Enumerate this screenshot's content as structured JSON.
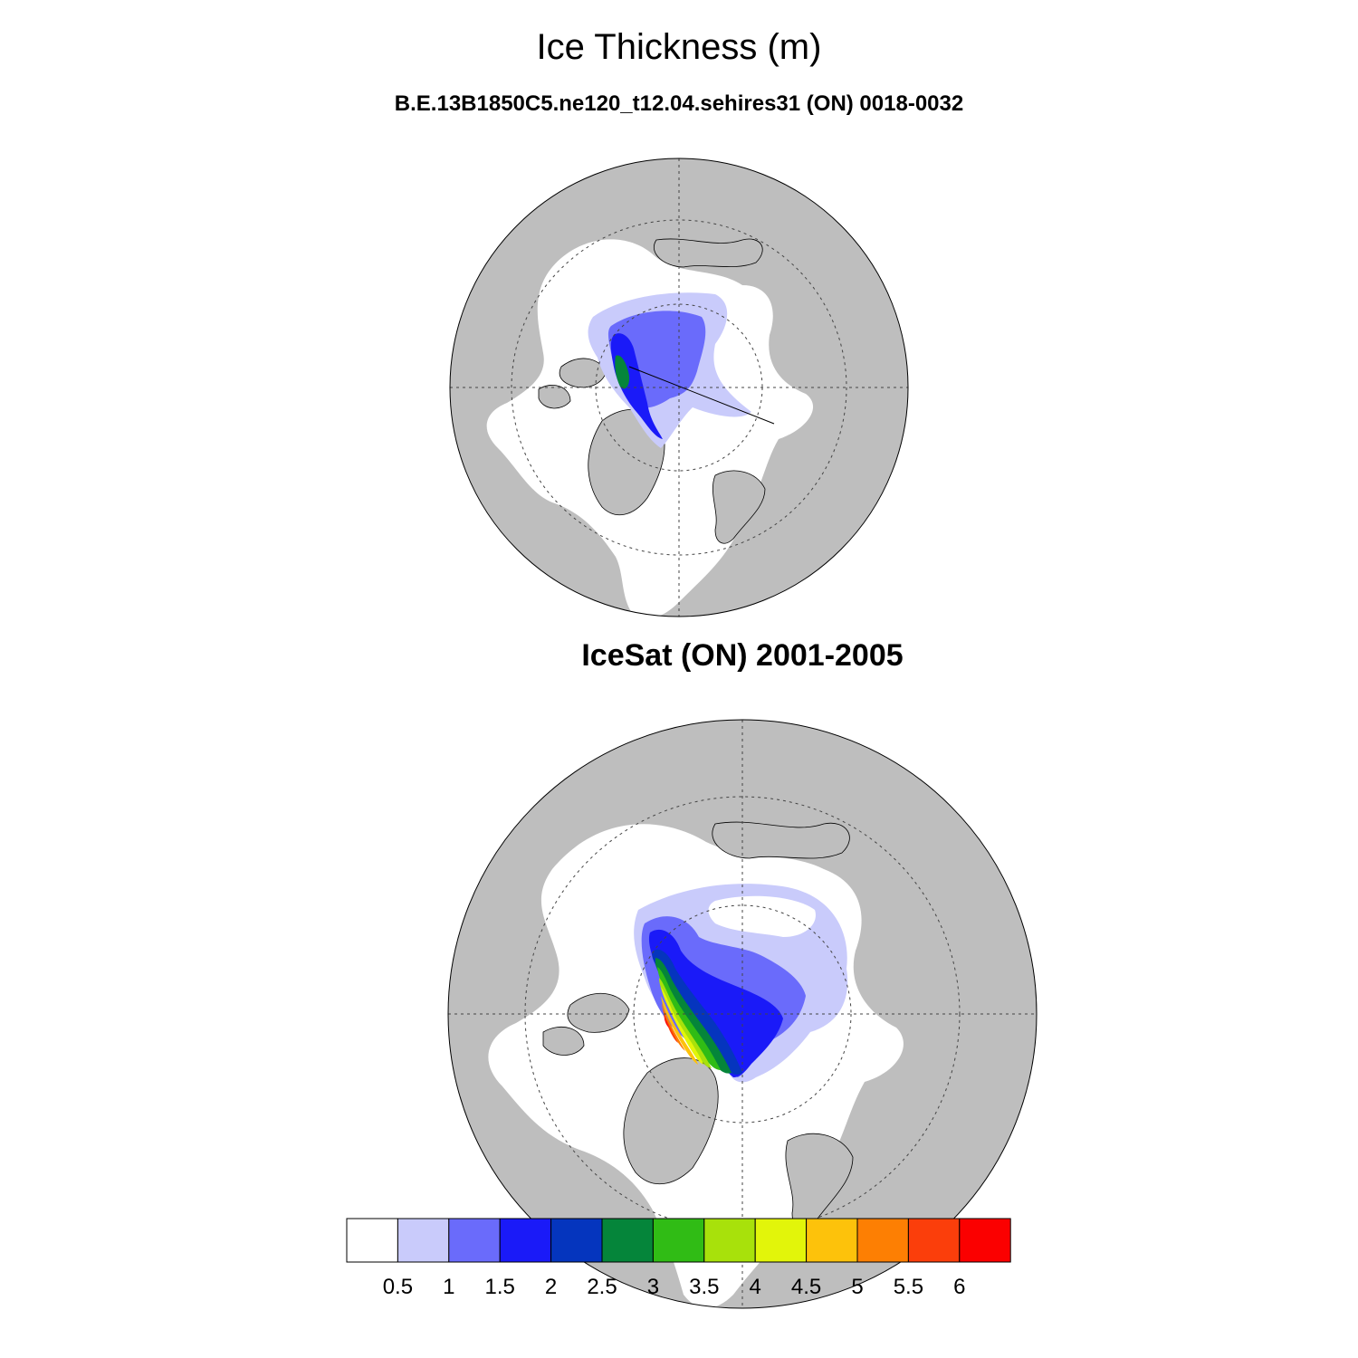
{
  "title": "Ice Thickness (m)",
  "panels": [
    {
      "subtitle": "B.E.13B1850C5.ne120_t12.04.sehires31 (ON) 0018-0032"
    },
    {
      "subtitle": "IceSat (ON) 2001-2005"
    }
  ],
  "colors": {
    "land": "#bebebe",
    "ocean_open": "#ffffff",
    "coast_line": "#000000"
  },
  "colorbar": {
    "labels": [
      "0.5",
      "1",
      "1.5",
      "2",
      "2.5",
      "3",
      "3.5",
      "4",
      "4.5",
      "5",
      "5.5",
      "6"
    ],
    "colors": [
      "#ffffff",
      "#c9cbfb",
      "#6a6bfb",
      "#1a1af8",
      "#0535be",
      "#05853a",
      "#30bc15",
      "#a8e10b",
      "#e2f50a",
      "#fdc20b",
      "#fd7f03",
      "#fb3e0b",
      "#fb0000"
    ]
  }
}
